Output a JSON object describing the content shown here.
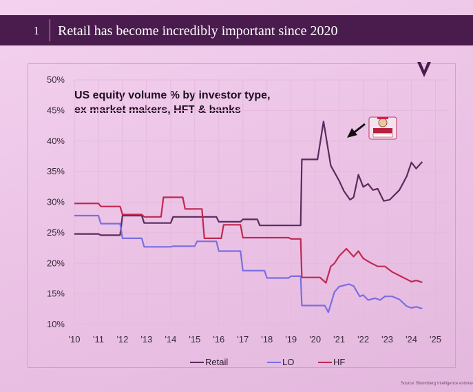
{
  "header": {
    "section_number": "1",
    "title": "Retail has become incredibly important since 2020"
  },
  "source_note": "Source: Bloomberg Intelligence estimates, Verity",
  "colors": {
    "header_bg": "#4a1c4e",
    "retail": "#5a2a5e",
    "lo": "#7a6ee0",
    "hf": "#c02850",
    "grid": "#e6b9dc"
  },
  "icons": {
    "logo": "v-logo-icon",
    "arrow": "arrow-icon",
    "sticker": "wallstreetbets-sticker-icon"
  },
  "chart_data": {
    "type": "line",
    "title": "US equity volume % by investor type, ex market makers, HFT & banks",
    "title_lines": [
      "US equity volume % by investor type,",
      "ex market makers, HFT & banks"
    ],
    "xlabel": "",
    "ylabel": "",
    "x_ticks": [
      {
        "x": 2010,
        "label": "'10"
      },
      {
        "x": 2011,
        "label": "'11"
      },
      {
        "x": 2012,
        "label": "'12"
      },
      {
        "x": 2013,
        "label": "'13"
      },
      {
        "x": 2014,
        "label": "'14"
      },
      {
        "x": 2015,
        "label": "'15"
      },
      {
        "x": 2016,
        "label": "'16"
      },
      {
        "x": 2017,
        "label": "'17"
      },
      {
        "x": 2018,
        "label": "'18"
      },
      {
        "x": 2019,
        "label": "'19"
      },
      {
        "x": 2020,
        "label": "'20"
      },
      {
        "x": 2021,
        "label": "'21"
      },
      {
        "x": 2022,
        "label": "'22"
      },
      {
        "x": 2023,
        "label": "'23"
      },
      {
        "x": 2024,
        "label": "'24"
      },
      {
        "x": 2025,
        "label": "'25"
      }
    ],
    "y_ticks": [
      {
        "y": 10,
        "label": "10%"
      },
      {
        "y": 15,
        "label": "15%"
      },
      {
        "y": 20,
        "label": "20%"
      },
      {
        "y": 25,
        "label": "25%"
      },
      {
        "y": 30,
        "label": "30%"
      },
      {
        "y": 35,
        "label": "35%"
      },
      {
        "y": 40,
        "label": "40%"
      },
      {
        "y": 45,
        "label": "45%"
      },
      {
        "y": 50,
        "label": "50%"
      }
    ],
    "xlim": [
      2010,
      2025.5
    ],
    "ylim": [
      10,
      50
    ],
    "grid": true,
    "legend_position": "bottom-center",
    "series": [
      {
        "name": "Retail",
        "points": [
          [
            2010,
            24.8
          ],
          [
            2011.0,
            24.8
          ],
          [
            2011.1,
            24.6
          ],
          [
            2011.9,
            24.6
          ],
          [
            2012.0,
            27.8
          ],
          [
            2012.8,
            27.8
          ],
          [
            2012.9,
            26.6
          ],
          [
            2014.0,
            26.6
          ],
          [
            2014.1,
            27.6
          ],
          [
            2015.9,
            27.6
          ],
          [
            2016.0,
            26.8
          ],
          [
            2016.9,
            26.8
          ],
          [
            2017.0,
            27.2
          ],
          [
            2017.6,
            27.2
          ],
          [
            2017.7,
            26.2
          ],
          [
            2019.0,
            26.2
          ],
          [
            2019.4,
            26.2
          ],
          [
            2019.45,
            37.0
          ],
          [
            2020.1,
            37.0
          ],
          [
            2020.35,
            43.2
          ],
          [
            2020.65,
            36.0
          ],
          [
            2021.0,
            33.5
          ],
          [
            2021.2,
            31.8
          ],
          [
            2021.45,
            30.4
          ],
          [
            2021.6,
            30.8
          ],
          [
            2021.8,
            34.5
          ],
          [
            2022.0,
            32.5
          ],
          [
            2022.2,
            33.0
          ],
          [
            2022.4,
            32.0
          ],
          [
            2022.6,
            32.2
          ],
          [
            2022.85,
            30.2
          ],
          [
            2023.1,
            30.4
          ],
          [
            2023.5,
            32.0
          ],
          [
            2023.8,
            34.2
          ],
          [
            2024.0,
            36.5
          ],
          [
            2024.2,
            35.5
          ],
          [
            2024.45,
            36.6
          ]
        ]
      },
      {
        "name": "LO",
        "points": [
          [
            2010,
            27.8
          ],
          [
            2011.0,
            27.8
          ],
          [
            2011.1,
            26.5
          ],
          [
            2011.9,
            26.5
          ],
          [
            2012.0,
            24.1
          ],
          [
            2012.8,
            24.1
          ],
          [
            2012.9,
            22.7
          ],
          [
            2014.0,
            22.7
          ],
          [
            2014.1,
            22.8
          ],
          [
            2015.0,
            22.8
          ],
          [
            2015.1,
            23.6
          ],
          [
            2015.9,
            23.6
          ],
          [
            2016.0,
            22.0
          ],
          [
            2016.9,
            22.0
          ],
          [
            2017.0,
            18.8
          ],
          [
            2017.9,
            18.8
          ],
          [
            2018.0,
            17.6
          ],
          [
            2018.9,
            17.6
          ],
          [
            2019.0,
            17.9
          ],
          [
            2019.4,
            17.9
          ],
          [
            2019.45,
            13.1
          ],
          [
            2020.4,
            13.1
          ],
          [
            2020.55,
            12.0
          ],
          [
            2020.8,
            15.3
          ],
          [
            2021.0,
            16.2
          ],
          [
            2021.4,
            16.6
          ],
          [
            2021.6,
            16.3
          ],
          [
            2021.85,
            14.6
          ],
          [
            2022.0,
            14.8
          ],
          [
            2022.2,
            14.0
          ],
          [
            2022.5,
            14.3
          ],
          [
            2022.7,
            14.0
          ],
          [
            2022.9,
            14.6
          ],
          [
            2023.2,
            14.6
          ],
          [
            2023.5,
            14.1
          ],
          [
            2023.8,
            13.0
          ],
          [
            2024.0,
            12.7
          ],
          [
            2024.2,
            12.9
          ],
          [
            2024.45,
            12.6
          ]
        ]
      },
      {
        "name": "HF",
        "points": [
          [
            2010,
            29.8
          ],
          [
            2011.0,
            29.8
          ],
          [
            2011.1,
            29.3
          ],
          [
            2011.9,
            29.3
          ],
          [
            2012.0,
            28.0
          ],
          [
            2012.8,
            28.0
          ],
          [
            2012.9,
            27.6
          ],
          [
            2013.6,
            27.6
          ],
          [
            2013.7,
            30.8
          ],
          [
            2014.5,
            30.8
          ],
          [
            2014.6,
            28.9
          ],
          [
            2015.3,
            28.9
          ],
          [
            2015.4,
            24.1
          ],
          [
            2016.1,
            24.1
          ],
          [
            2016.2,
            26.3
          ],
          [
            2016.9,
            26.3
          ],
          [
            2017.0,
            24.2
          ],
          [
            2018.9,
            24.2
          ],
          [
            2019.0,
            24.0
          ],
          [
            2019.4,
            24.0
          ],
          [
            2019.45,
            17.7
          ],
          [
            2020.2,
            17.7
          ],
          [
            2020.45,
            16.8
          ],
          [
            2020.65,
            19.5
          ],
          [
            2020.8,
            20.0
          ],
          [
            2021.0,
            21.2
          ],
          [
            2021.3,
            22.4
          ],
          [
            2021.6,
            21.1
          ],
          [
            2021.8,
            22.0
          ],
          [
            2022.0,
            20.8
          ],
          [
            2022.3,
            20.1
          ],
          [
            2022.6,
            19.5
          ],
          [
            2022.9,
            19.5
          ],
          [
            2023.2,
            18.6
          ],
          [
            2023.5,
            18.0
          ],
          [
            2023.8,
            17.4
          ],
          [
            2024.0,
            17.0
          ],
          [
            2024.2,
            17.2
          ],
          [
            2024.45,
            16.9
          ]
        ]
      }
    ]
  }
}
